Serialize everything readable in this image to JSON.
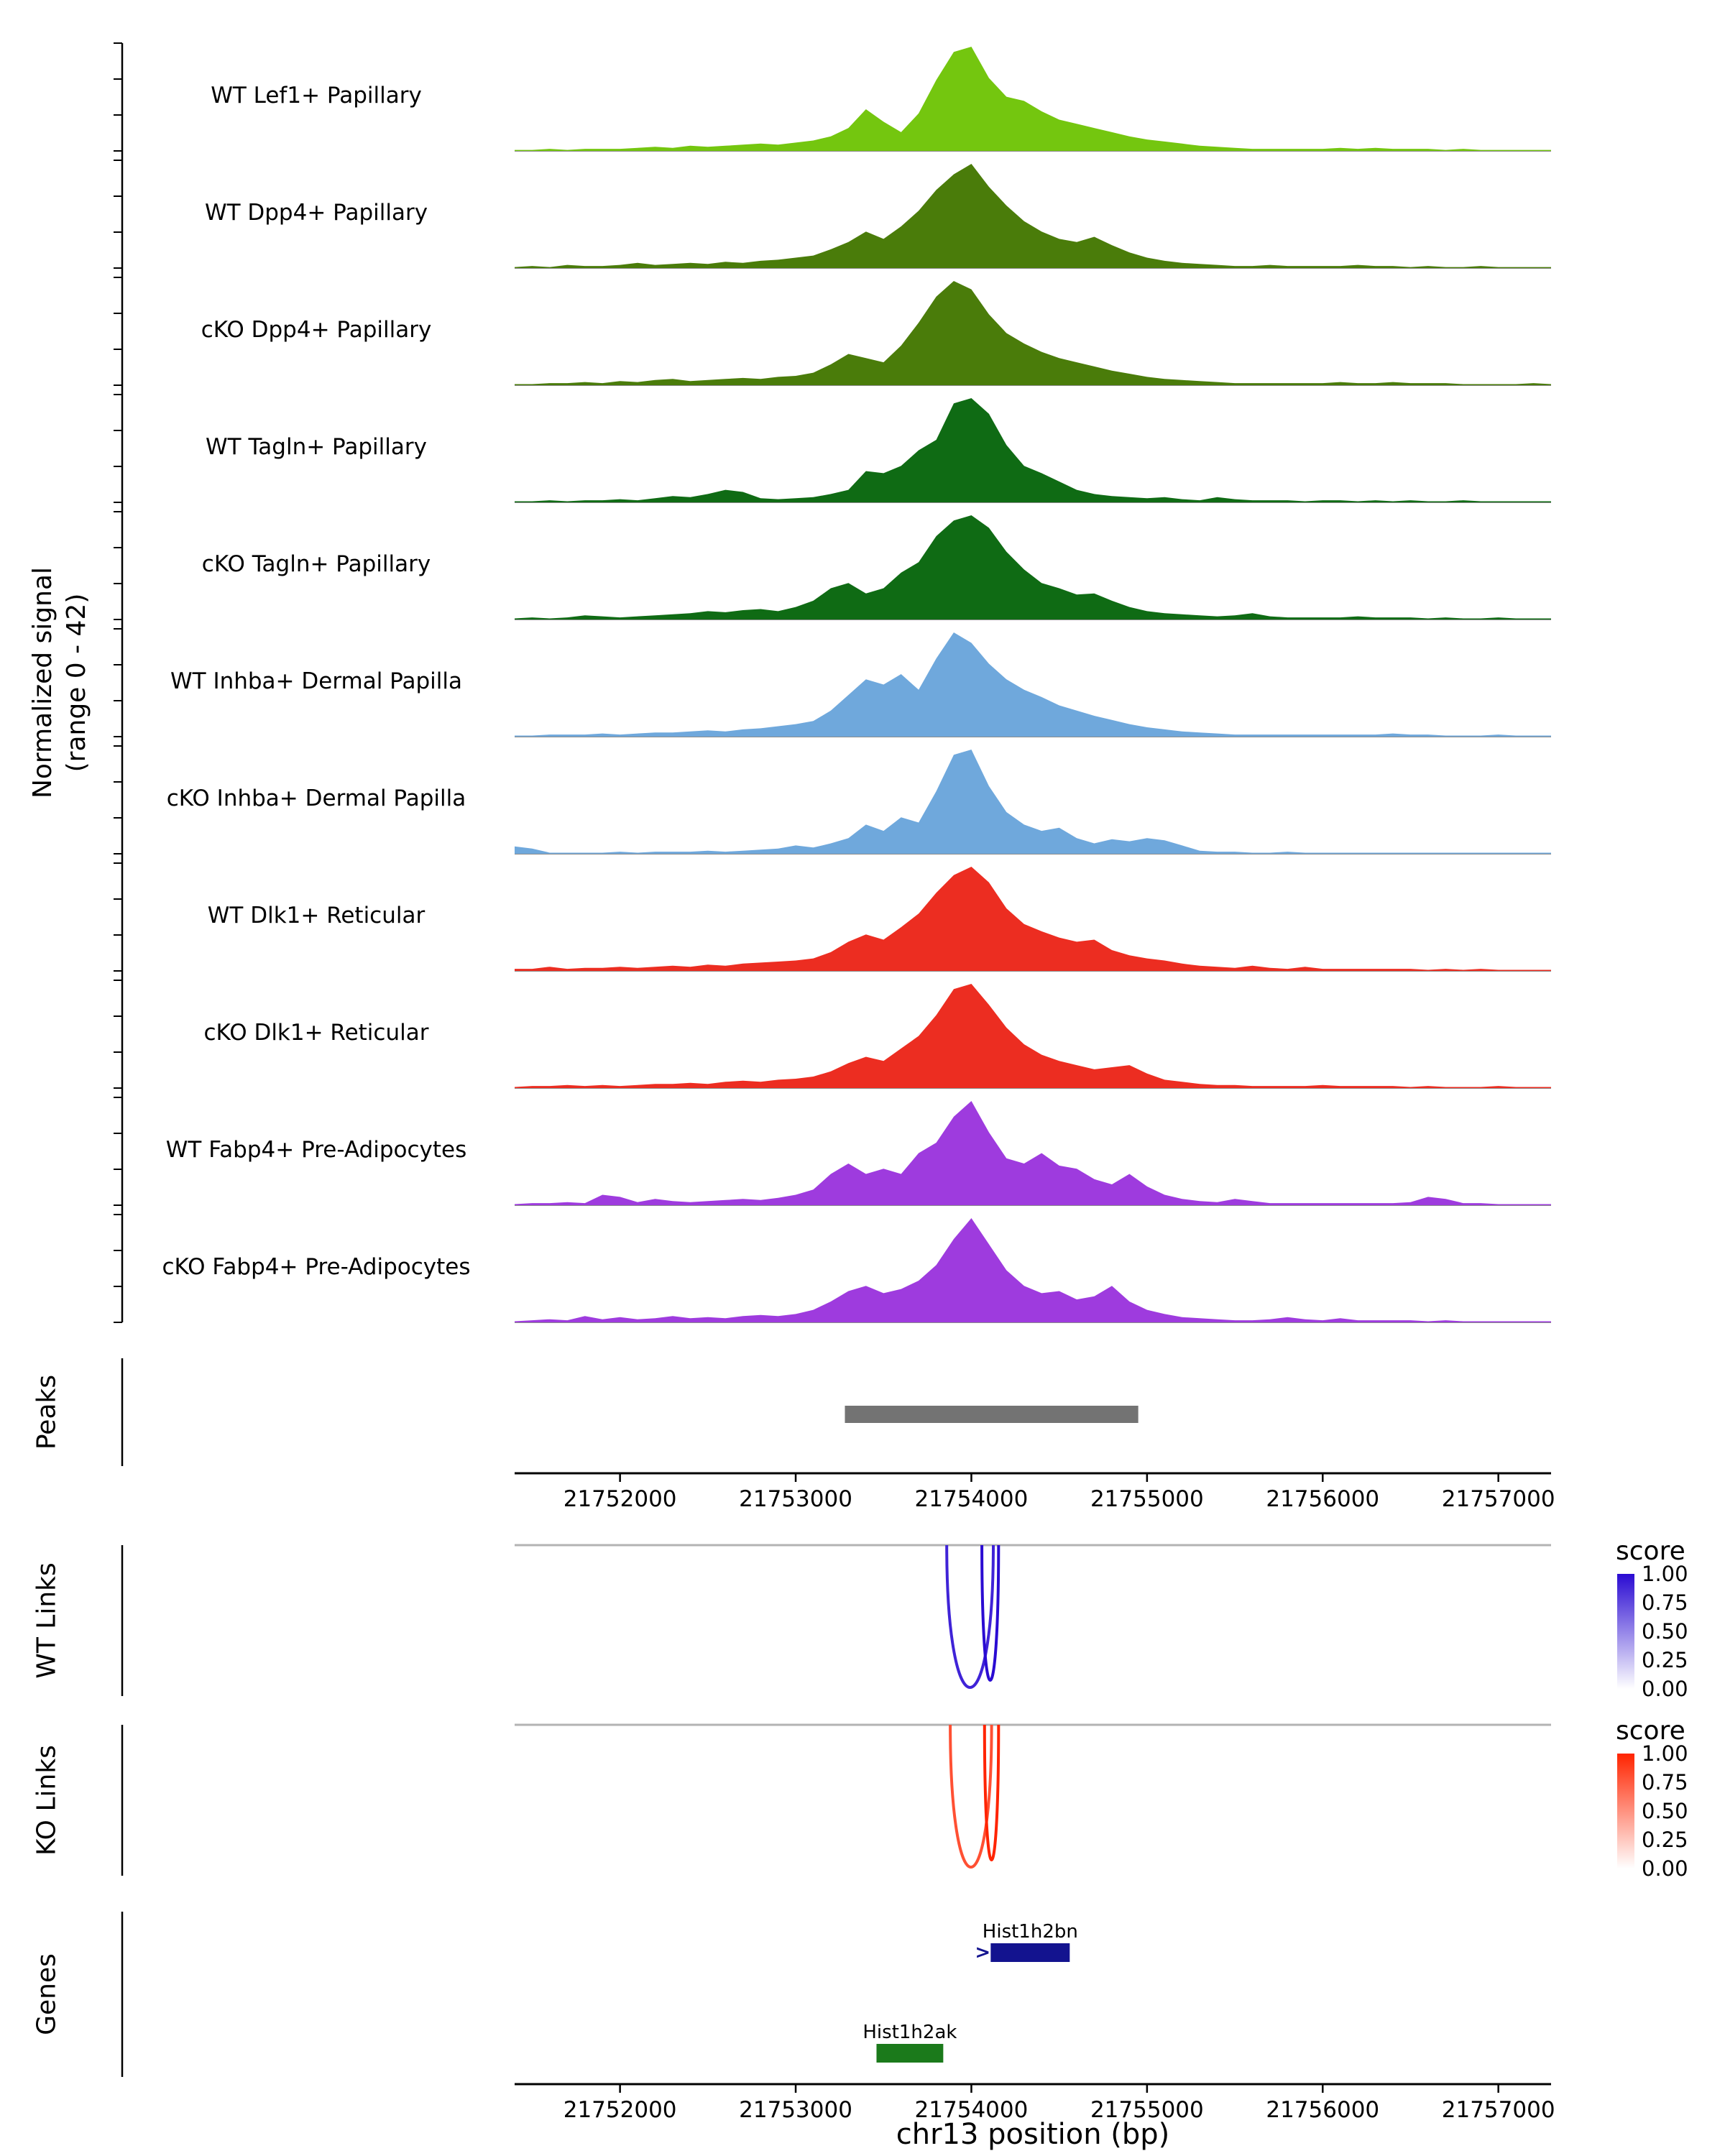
{
  "figure": {
    "y_axis_label": "Normalized signal\n(range 0 - 42)",
    "x_axis_label": "chr13 position (bp)",
    "sections": {
      "peaks": "Peaks",
      "wt_links": "WT Links",
      "ko_links": "KO Links",
      "genes": "Genes"
    }
  },
  "chart_data": {
    "type": "area",
    "chrom": "chr13",
    "x_domain": [
      21751400,
      21757300
    ],
    "x_ticks": [
      21752000,
      21753000,
      21754000,
      21755000,
      21756000,
      21757000
    ],
    "signal_range": [
      0,
      42
    ],
    "sample_step_bp": 100,
    "tracks": [
      {
        "label": "WT Lef1+ Papillary",
        "color": "#74C60F",
        "values": [
          0.01,
          0.01,
          0.02,
          0.01,
          0.02,
          0.02,
          0.02,
          0.03,
          0.04,
          0.03,
          0.05,
          0.04,
          0.05,
          0.06,
          0.07,
          0.06,
          0.08,
          0.1,
          0.14,
          0.22,
          0.4,
          0.28,
          0.18,
          0.36,
          0.68,
          0.95,
          1.0,
          0.7,
          0.52,
          0.48,
          0.38,
          0.3,
          0.26,
          0.22,
          0.18,
          0.14,
          0.11,
          0.09,
          0.07,
          0.05,
          0.04,
          0.03,
          0.02,
          0.02,
          0.02,
          0.02,
          0.02,
          0.03,
          0.02,
          0.03,
          0.02,
          0.02,
          0.02,
          0.01,
          0.02,
          0.01,
          0.01,
          0.01,
          0.01,
          0.01
        ]
      },
      {
        "label": "WT Dpp4+ Papillary",
        "color": "#4A7C0A",
        "values": [
          0.01,
          0.02,
          0.01,
          0.03,
          0.02,
          0.02,
          0.03,
          0.05,
          0.03,
          0.04,
          0.05,
          0.04,
          0.06,
          0.05,
          0.07,
          0.08,
          0.1,
          0.12,
          0.18,
          0.25,
          0.35,
          0.28,
          0.4,
          0.55,
          0.75,
          0.9,
          1.0,
          0.78,
          0.6,
          0.45,
          0.35,
          0.28,
          0.25,
          0.3,
          0.22,
          0.15,
          0.1,
          0.07,
          0.05,
          0.04,
          0.03,
          0.02,
          0.02,
          0.03,
          0.02,
          0.02,
          0.02,
          0.02,
          0.03,
          0.02,
          0.02,
          0.01,
          0.02,
          0.01,
          0.01,
          0.02,
          0.01,
          0.01,
          0.01,
          0.01
        ]
      },
      {
        "label": "cKO Dpp4+ Papillary",
        "color": "#4A7C0A",
        "values": [
          0.01,
          0.01,
          0.02,
          0.02,
          0.03,
          0.02,
          0.04,
          0.03,
          0.05,
          0.06,
          0.04,
          0.05,
          0.06,
          0.07,
          0.06,
          0.08,
          0.09,
          0.12,
          0.2,
          0.3,
          0.26,
          0.22,
          0.38,
          0.6,
          0.85,
          1.0,
          0.92,
          0.68,
          0.5,
          0.4,
          0.32,
          0.26,
          0.22,
          0.18,
          0.14,
          0.11,
          0.08,
          0.06,
          0.05,
          0.04,
          0.03,
          0.02,
          0.02,
          0.02,
          0.02,
          0.02,
          0.02,
          0.03,
          0.02,
          0.02,
          0.03,
          0.02,
          0.02,
          0.02,
          0.01,
          0.01,
          0.01,
          0.01,
          0.02,
          0.01
        ]
      },
      {
        "label": "WT Tagln+ Papillary",
        "color": "#0F6B14",
        "values": [
          0.01,
          0.01,
          0.02,
          0.01,
          0.02,
          0.02,
          0.03,
          0.02,
          0.04,
          0.06,
          0.05,
          0.08,
          0.12,
          0.1,
          0.04,
          0.03,
          0.04,
          0.05,
          0.08,
          0.12,
          0.3,
          0.28,
          0.35,
          0.5,
          0.6,
          0.95,
          1.0,
          0.85,
          0.55,
          0.35,
          0.28,
          0.2,
          0.12,
          0.08,
          0.06,
          0.05,
          0.04,
          0.05,
          0.03,
          0.02,
          0.05,
          0.03,
          0.02,
          0.02,
          0.02,
          0.01,
          0.02,
          0.02,
          0.01,
          0.02,
          0.01,
          0.02,
          0.01,
          0.01,
          0.02,
          0.01,
          0.01,
          0.01,
          0.01,
          0.01
        ]
      },
      {
        "label": "cKO Tagln+ Papillary",
        "color": "#0F6B14",
        "values": [
          0.01,
          0.02,
          0.01,
          0.02,
          0.04,
          0.03,
          0.02,
          0.03,
          0.04,
          0.05,
          0.06,
          0.08,
          0.07,
          0.09,
          0.1,
          0.08,
          0.12,
          0.18,
          0.3,
          0.35,
          0.25,
          0.3,
          0.45,
          0.55,
          0.8,
          0.95,
          1.0,
          0.88,
          0.65,
          0.48,
          0.35,
          0.3,
          0.24,
          0.25,
          0.18,
          0.12,
          0.08,
          0.06,
          0.05,
          0.04,
          0.03,
          0.04,
          0.06,
          0.03,
          0.02,
          0.02,
          0.02,
          0.02,
          0.03,
          0.02,
          0.02,
          0.02,
          0.01,
          0.02,
          0.01,
          0.01,
          0.02,
          0.01,
          0.01,
          0.01
        ]
      },
      {
        "label": "WT Inhba+ Dermal Papilla",
        "color": "#6FA8DC",
        "values": [
          0.01,
          0.01,
          0.02,
          0.02,
          0.02,
          0.03,
          0.02,
          0.03,
          0.04,
          0.04,
          0.05,
          0.06,
          0.05,
          0.07,
          0.08,
          0.1,
          0.12,
          0.15,
          0.25,
          0.4,
          0.55,
          0.5,
          0.6,
          0.45,
          0.75,
          1.0,
          0.9,
          0.7,
          0.55,
          0.45,
          0.38,
          0.3,
          0.25,
          0.2,
          0.16,
          0.12,
          0.09,
          0.07,
          0.05,
          0.04,
          0.03,
          0.02,
          0.02,
          0.02,
          0.02,
          0.02,
          0.02,
          0.02,
          0.02,
          0.02,
          0.03,
          0.02,
          0.02,
          0.01,
          0.01,
          0.01,
          0.02,
          0.01,
          0.01,
          0.01
        ]
      },
      {
        "label": "cKO Inhba+ Dermal Papilla",
        "color": "#6FA8DC",
        "values": [
          0.07,
          0.05,
          0.01,
          0.01,
          0.01,
          0.01,
          0.02,
          0.01,
          0.02,
          0.02,
          0.02,
          0.03,
          0.02,
          0.03,
          0.04,
          0.05,
          0.08,
          0.06,
          0.1,
          0.15,
          0.28,
          0.22,
          0.35,
          0.3,
          0.6,
          0.95,
          1.0,
          0.65,
          0.4,
          0.28,
          0.22,
          0.25,
          0.15,
          0.1,
          0.14,
          0.12,
          0.15,
          0.13,
          0.08,
          0.03,
          0.02,
          0.02,
          0.01,
          0.01,
          0.02,
          0.01,
          0.01,
          0.01,
          0.01,
          0.01,
          0.01,
          0.01,
          0.01,
          0.01,
          0.01,
          0.01,
          0.01,
          0.01,
          0.01,
          0.01
        ]
      },
      {
        "label": "WT Dlk1+ Reticular",
        "color": "#EC2D21",
        "values": [
          0.02,
          0.02,
          0.04,
          0.02,
          0.03,
          0.03,
          0.04,
          0.03,
          0.04,
          0.05,
          0.04,
          0.06,
          0.05,
          0.07,
          0.08,
          0.09,
          0.1,
          0.12,
          0.18,
          0.28,
          0.35,
          0.3,
          0.42,
          0.55,
          0.75,
          0.92,
          1.0,
          0.85,
          0.6,
          0.45,
          0.38,
          0.32,
          0.28,
          0.3,
          0.2,
          0.15,
          0.12,
          0.1,
          0.07,
          0.05,
          0.04,
          0.03,
          0.05,
          0.03,
          0.02,
          0.04,
          0.02,
          0.02,
          0.02,
          0.02,
          0.02,
          0.02,
          0.01,
          0.02,
          0.01,
          0.02,
          0.01,
          0.01,
          0.01,
          0.01
        ]
      },
      {
        "label": "cKO Dlk1+ Reticular",
        "color": "#EC2D21",
        "values": [
          0.01,
          0.02,
          0.02,
          0.03,
          0.02,
          0.03,
          0.02,
          0.03,
          0.04,
          0.04,
          0.05,
          0.04,
          0.06,
          0.07,
          0.06,
          0.08,
          0.09,
          0.11,
          0.16,
          0.24,
          0.3,
          0.26,
          0.38,
          0.5,
          0.7,
          0.95,
          1.0,
          0.8,
          0.58,
          0.42,
          0.32,
          0.26,
          0.22,
          0.18,
          0.2,
          0.22,
          0.14,
          0.08,
          0.06,
          0.04,
          0.03,
          0.03,
          0.02,
          0.02,
          0.02,
          0.02,
          0.03,
          0.02,
          0.02,
          0.02,
          0.02,
          0.01,
          0.02,
          0.01,
          0.01,
          0.01,
          0.02,
          0.01,
          0.01,
          0.01
        ]
      },
      {
        "label": "WT Fabp4+ Pre-Adipocytes",
        "color": "#9E3BDE",
        "values": [
          0.01,
          0.02,
          0.02,
          0.03,
          0.02,
          0.1,
          0.08,
          0.03,
          0.06,
          0.04,
          0.03,
          0.04,
          0.05,
          0.06,
          0.05,
          0.07,
          0.1,
          0.15,
          0.3,
          0.4,
          0.3,
          0.35,
          0.3,
          0.5,
          0.6,
          0.85,
          1.0,
          0.7,
          0.45,
          0.4,
          0.5,
          0.38,
          0.35,
          0.25,
          0.2,
          0.3,
          0.18,
          0.1,
          0.06,
          0.04,
          0.03,
          0.06,
          0.04,
          0.02,
          0.02,
          0.02,
          0.02,
          0.02,
          0.02,
          0.02,
          0.02,
          0.03,
          0.08,
          0.06,
          0.02,
          0.02,
          0.01,
          0.01,
          0.01,
          0.01
        ]
      },
      {
        "label": "cKO Fabp4+ Pre-Adipocytes",
        "color": "#9E3BDE",
        "values": [
          0.01,
          0.02,
          0.03,
          0.02,
          0.06,
          0.03,
          0.05,
          0.03,
          0.04,
          0.06,
          0.04,
          0.05,
          0.04,
          0.06,
          0.07,
          0.06,
          0.08,
          0.12,
          0.2,
          0.3,
          0.35,
          0.28,
          0.32,
          0.4,
          0.55,
          0.8,
          1.0,
          0.75,
          0.5,
          0.35,
          0.28,
          0.3,
          0.22,
          0.25,
          0.35,
          0.2,
          0.12,
          0.08,
          0.05,
          0.04,
          0.03,
          0.02,
          0.02,
          0.03,
          0.05,
          0.03,
          0.02,
          0.04,
          0.02,
          0.02,
          0.02,
          0.02,
          0.01,
          0.02,
          0.01,
          0.01,
          0.01,
          0.01,
          0.01,
          0.01
        ]
      }
    ],
    "peaks": [
      {
        "start": 21753280,
        "end": 21754950,
        "color": "#737373"
      }
    ],
    "links": {
      "wt": {
        "legend_title": "score",
        "legend_ticks": [
          "1.00",
          "0.75",
          "0.50",
          "0.25",
          "0.00"
        ],
        "base_color": "#2A0BD2",
        "arcs": [
          {
            "start": 21753860,
            "end": 21754125,
            "score": 0.9
          },
          {
            "start": 21754060,
            "end": 21754155,
            "score": 1.0
          }
        ]
      },
      "ko": {
        "legend_title": "score",
        "legend_ticks": [
          "1.00",
          "0.75",
          "0.50",
          "0.25",
          "0.00"
        ],
        "base_color": "#FF2400",
        "arcs": [
          {
            "start": 21753880,
            "end": 21754115,
            "score": 0.8
          },
          {
            "start": 21754075,
            "end": 21754155,
            "score": 1.0
          }
        ]
      }
    },
    "genes": [
      {
        "name": "Hist1h2bn",
        "start": 21754110,
        "end": 21754560,
        "color": "#13138F",
        "row": 0,
        "direction_marker": ">"
      },
      {
        "name": "Hist1h2ak",
        "start": 21753460,
        "end": 21753840,
        "color": "#1B7A1B",
        "row": 1,
        "direction_marker": ""
      }
    ]
  }
}
